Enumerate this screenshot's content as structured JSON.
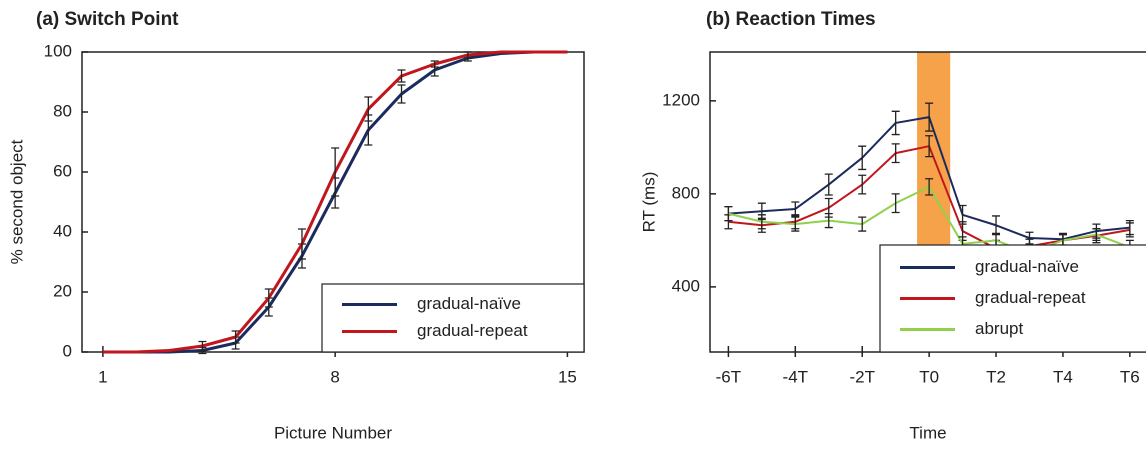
{
  "chart_data": [
    {
      "type": "line",
      "title": "(a) Switch Point",
      "xlabel": "Picture Number",
      "ylabel": "% second object",
      "x": [
        1,
        2,
        3,
        4,
        5,
        6,
        7,
        8,
        9,
        10,
        11,
        12,
        13,
        14,
        15
      ],
      "xlim": [
        0.37,
        15.5
      ],
      "xticks": [
        1,
        8,
        15
      ],
      "ylim": [
        0,
        100
      ],
      "yticks": [
        0,
        20,
        40,
        60,
        80,
        100
      ],
      "legend": "lower right",
      "series": [
        {
          "name": "gradual-naïve",
          "color": "#1c2b5e",
          "values": [
            0,
            0,
            0,
            0.5,
            3,
            15,
            32,
            53,
            74,
            86,
            94,
            98,
            99.5,
            100,
            100
          ],
          "errors": [
            null,
            null,
            null,
            1,
            2,
            3,
            4,
            5,
            5,
            3,
            2,
            1,
            null,
            null,
            null
          ]
        },
        {
          "name": "gradual-repeat",
          "color": "#c0161c",
          "values": [
            0,
            0,
            0.5,
            2,
            5,
            18,
            36,
            60,
            81,
            92,
            96,
            99,
            100,
            100,
            100
          ],
          "errors": [
            null,
            null,
            null,
            1.5,
            2,
            3,
            5,
            8,
            4,
            2,
            1,
            1,
            null,
            null,
            null
          ]
        }
      ]
    },
    {
      "type": "line",
      "title": "(b) Reaction Times",
      "xlabel": "Time",
      "ylabel": "RT (ms)",
      "x": [
        -6,
        -5,
        -4,
        -3,
        -2,
        -1,
        0,
        1,
        2,
        3,
        4,
        5,
        6
      ],
      "xlim": [
        -6.55,
        7.2
      ],
      "xticks": [
        {
          "value": -6,
          "label": "-6T"
        },
        {
          "value": -4,
          "label": "-4T"
        },
        {
          "value": -2,
          "label": "-2T"
        },
        {
          "value": 0,
          "label": "T0"
        },
        {
          "value": 2,
          "label": "T2"
        },
        {
          "value": 4,
          "label": "T4"
        },
        {
          "value": 6,
          "label": "T6"
        }
      ],
      "ylim": [
        120,
        1410
      ],
      "yticks": [
        400,
        800,
        1200
      ],
      "highlight_span": [
        -0.36,
        0.63
      ],
      "highlight_color": "#f5a24a",
      "legend": "lower right",
      "series": [
        {
          "name": "gradual-naïve",
          "color": "#1c2b5e",
          "values": [
            715,
            725,
            735,
            840,
            955,
            1105,
            1130,
            710,
            665,
            610,
            605,
            640,
            655
          ],
          "errors": [
            30,
            35,
            30,
            45,
            50,
            50,
            60,
            40,
            40,
            25,
            25,
            30,
            30
          ]
        },
        {
          "name": "gradual-repeat",
          "color": "#c0161c",
          "values": [
            680,
            665,
            680,
            740,
            840,
            975,
            1005,
            640,
            565,
            575,
            600,
            620,
            645
          ],
          "errors": [
            30,
            30,
            30,
            40,
            40,
            40,
            45,
            40,
            35,
            30,
            25,
            30,
            30
          ]
        },
        {
          "name": "abrupt",
          "color": "#8fd14f",
          "values": [
            715,
            680,
            670,
            685,
            670,
            760,
            830,
            585,
            600,
            545,
            600,
            625,
            570
          ],
          "errors": [
            30,
            30,
            30,
            30,
            30,
            40,
            35,
            30,
            30,
            30,
            25,
            25,
            30
          ]
        }
      ]
    }
  ]
}
